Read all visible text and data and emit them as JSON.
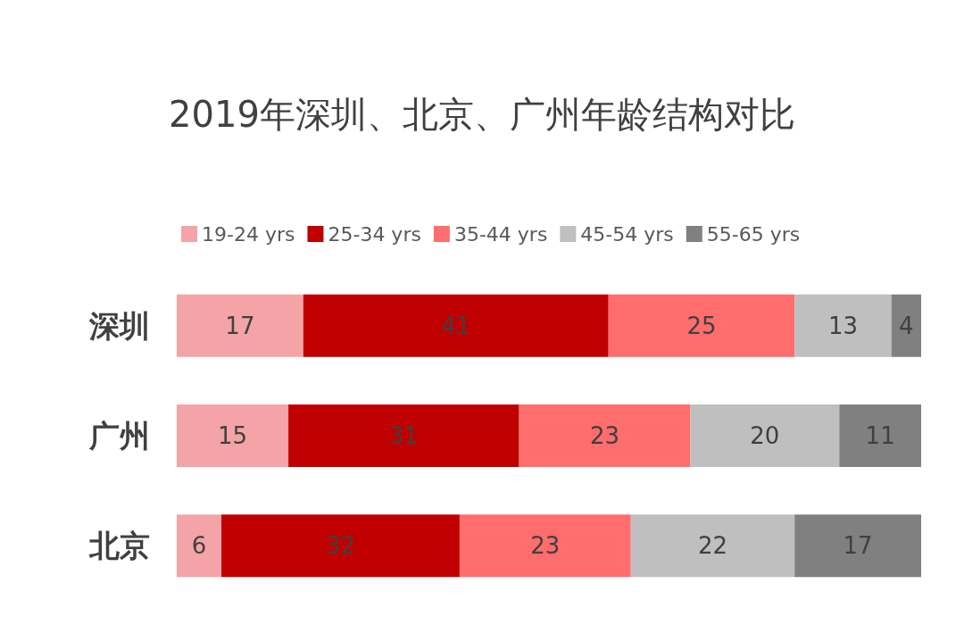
{
  "chart_data": {
    "type": "bar",
    "orientation": "horizontal",
    "stacked": true,
    "title": "2019年深圳、北京、广州年龄结构对比",
    "categories": [
      "深圳",
      "广州",
      "北京"
    ],
    "series": [
      {
        "name": "19-24 yrs",
        "color": "#f4a4a6",
        "values": [
          17,
          15,
          6
        ]
      },
      {
        "name": "25-34 yrs",
        "color": "#c00000",
        "values": [
          41,
          31,
          32
        ]
      },
      {
        "name": "35-44 yrs",
        "color": "#ff6d6d",
        "values": [
          25,
          23,
          23
        ]
      },
      {
        "name": "45-54 yrs",
        "color": "#bfbfbf",
        "values": [
          13,
          20,
          22
        ]
      },
      {
        "name": "55-65 yrs",
        "color": "#808080",
        "values": [
          4,
          11,
          17
        ]
      }
    ],
    "data_labels": true,
    "legend": "top"
  }
}
